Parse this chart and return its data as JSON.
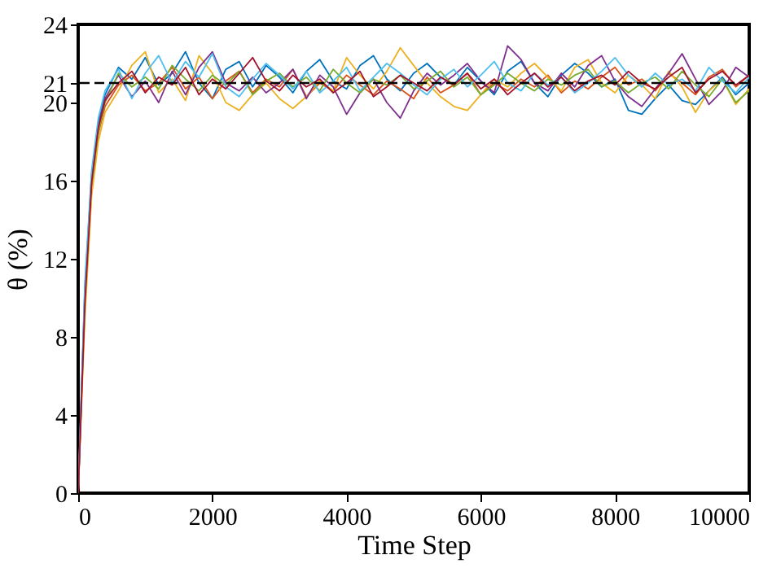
{
  "chart_data": {
    "type": "line",
    "xlabel": "Time Step",
    "ylabel": "θ (%)",
    "xlim": [
      0,
      10000
    ],
    "ylim": [
      0,
      24
    ],
    "xticks": [
      0,
      2000,
      4000,
      6000,
      8000,
      10000
    ],
    "yticks": [
      0,
      4,
      8,
      12,
      16,
      20,
      21,
      24
    ],
    "grid": false,
    "x": [
      0,
      100,
      200,
      300,
      400,
      600,
      800,
      1000,
      1200,
      1400,
      1600,
      1800,
      2000,
      2200,
      2400,
      2600,
      2800,
      3000,
      3200,
      3400,
      3600,
      3800,
      4000,
      4200,
      4400,
      4600,
      4800,
      5000,
      5200,
      5400,
      5600,
      5800,
      6000,
      6200,
      6400,
      6600,
      6800,
      7000,
      7200,
      7400,
      7600,
      7800,
      8000,
      8200,
      8400,
      8600,
      8800,
      9000,
      9200,
      9400,
      9600,
      9800,
      10000
    ],
    "series": [
      {
        "color": "#0072bd",
        "values": [
          0,
          10.5,
          16.3,
          19,
          20.4,
          21.8,
          21.2,
          22.3,
          20.9,
          21.5,
          22.6,
          21.0,
          20.2,
          21.7,
          22.1,
          20.8,
          21.9,
          21.3,
          20.5,
          21.6,
          22.2,
          21.1,
          20.7,
          21.9,
          22.4,
          21.2,
          20.6,
          21.5,
          22.0,
          21.3,
          20.9,
          21.8,
          21.1,
          20.4,
          21.6,
          22.1,
          21.0,
          20.3,
          21.4,
          22.0,
          21.5,
          20.8,
          21.2,
          19.6,
          19.4,
          20.2,
          20.9,
          20.1,
          19.9,
          20.6,
          21.3,
          20.4,
          21.0
        ]
      },
      {
        "color": "#d95319",
        "values": [
          0,
          9.5,
          15.6,
          18.4,
          19.8,
          20.9,
          21.4,
          20.6,
          21.0,
          21.8,
          20.7,
          21.3,
          20.2,
          21.1,
          21.6,
          20.5,
          21.2,
          20.8,
          21.7,
          20.3,
          21.0,
          20.6,
          21.4,
          20.9,
          20.4,
          21.1,
          20.7,
          20.2,
          21.3,
          20.5,
          20.9,
          21.5,
          20.4,
          21.0,
          20.6,
          21.2,
          20.8,
          21.4,
          20.5,
          21.1,
          20.7,
          21.3,
          21.8,
          20.9,
          21.2,
          20.6,
          21.5,
          21.0,
          20.4,
          21.3,
          21.7,
          20.8,
          21.4
        ]
      },
      {
        "color": "#edb120",
        "values": [
          0,
          9,
          15.2,
          18,
          19.5,
          20.6,
          21.9,
          22.6,
          20.5,
          21.2,
          20.1,
          22.4,
          21.5,
          20.0,
          19.6,
          20.4,
          21.0,
          20.2,
          19.7,
          20.3,
          21.1,
          20.6,
          22.3,
          21.4,
          20.7,
          21.6,
          22.8,
          21.9,
          21.0,
          20.3,
          19.8,
          19.6,
          20.4,
          21.2,
          20.8,
          21.5,
          22.0,
          21.3,
          20.6,
          21.8,
          22.2,
          21.0,
          20.5,
          21.4,
          20.9,
          20.2,
          21.6,
          20.8,
          19.5,
          20.6,
          21.2,
          19.9,
          20.7
        ]
      },
      {
        "color": "#7e2f8e",
        "values": [
          0,
          10.2,
          16,
          18.8,
          20.2,
          21.4,
          20.3,
          21.1,
          20.0,
          21.6,
          20.4,
          21.8,
          22.6,
          21.0,
          20.6,
          21.3,
          20.5,
          21.0,
          21.7,
          20.2,
          21.4,
          20.8,
          19.4,
          20.5,
          21.2,
          20.0,
          19.2,
          20.6,
          21.5,
          20.9,
          21.4,
          22.0,
          21.1,
          20.5,
          22.9,
          22.2,
          21.0,
          20.6,
          21.5,
          20.8,
          21.9,
          22.4,
          21.1,
          20.3,
          19.8,
          20.7,
          21.5,
          22.5,
          21.2,
          19.9,
          20.6,
          21.8,
          21.3
        ]
      },
      {
        "color": "#77ac30",
        "values": [
          null,
          null,
          15.8,
          18.5,
          20,
          21.5,
          20.8,
          21.3,
          20.7,
          21.9,
          21.2,
          20.6,
          21.4,
          20.9,
          21.6,
          20.4,
          21.1,
          21.5,
          20.8,
          21.3,
          20.6,
          21.7,
          21.0,
          20.5,
          21.2,
          20.9,
          21.4,
          20.7,
          21.1,
          21.6,
          20.8,
          21.3,
          20.4,
          20.9,
          21.5,
          21.0,
          20.6,
          21.2,
          20.9,
          21.4,
          21.7,
          20.8,
          21.1,
          20.5,
          21.0,
          21.3,
          20.7,
          21.6,
          20.9,
          20.3,
          21.2,
          20.0,
          20.6
        ]
      },
      {
        "color": "#4dbeee",
        "values": [
          0,
          10.8,
          16.5,
          19.2,
          20.6,
          21.7,
          20.2,
          21.5,
          22.4,
          21.0,
          22.1,
          21.3,
          22.5,
          20.8,
          20.3,
          21.2,
          22.0,
          21.4,
          20.7,
          21.6,
          20.5,
          21.1,
          21.8,
          20.6,
          21.3,
          22.0,
          21.5,
          20.9,
          20.4,
          21.2,
          21.7,
          20.8,
          21.4,
          22.1,
          21.0,
          20.6,
          21.5,
          20.9,
          21.3,
          20.5,
          21.0,
          21.6,
          22.3,
          21.4,
          20.8,
          21.5,
          20.9,
          21.2,
          20.6,
          21.8,
          21.1,
          20.5,
          21.3
        ]
      },
      {
        "color": "#a2142f",
        "values": [
          0,
          9.7,
          15.9,
          18.7,
          20.1,
          21.0,
          21.6,
          20.5,
          21.3,
          20.9,
          21.8,
          20.4,
          21.2,
          20.7,
          21.5,
          22.3,
          21.1,
          20.6,
          21.4,
          20.8,
          21.2,
          20.5,
          21.0,
          21.6,
          20.3,
          20.8,
          21.4,
          21.0,
          20.6,
          21.3,
          20.9,
          21.5,
          20.7,
          21.2,
          20.4,
          21.0,
          21.5,
          20.8,
          21.3,
          20.6,
          21.1,
          21.4,
          20.9,
          21.6,
          21.0,
          20.7,
          21.3,
          21.8,
          20.5,
          21.2,
          21.6,
          20.9,
          21.4
        ]
      }
    ],
    "ref_lines": [
      {
        "axis": "y",
        "value": 21,
        "color": "#000000",
        "line_style": "dashed"
      }
    ]
  }
}
